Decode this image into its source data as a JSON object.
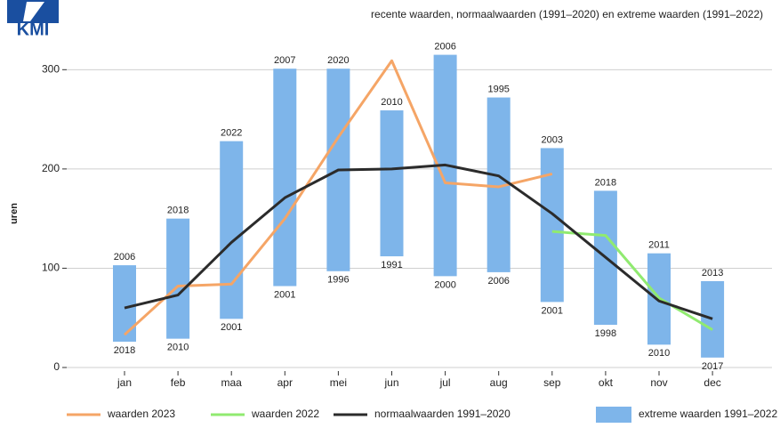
{
  "logo_text": "KMI",
  "chart_data": {
    "type": "line",
    "subtitle": "recente waarden, normaalwaarden (1991–2020) en extreme waarden (1991–2022)",
    "y_label": "uren",
    "categories": [
      "jan",
      "feb",
      "maa",
      "apr",
      "mei",
      "jun",
      "jul",
      "aug",
      "sep",
      "okt",
      "nov",
      "dec"
    ],
    "ylim": [
      0,
      320
    ],
    "yticks": [
      0,
      100,
      200,
      300
    ],
    "grid": true,
    "range": {
      "name": "extreme waarden 1991–2022",
      "color": "#7eb5ea",
      "low": [
        26,
        29,
        49,
        82,
        97,
        112,
        92,
        96,
        66,
        43,
        23,
        10
      ],
      "high": [
        103,
        150,
        228,
        301,
        301,
        259,
        315,
        272,
        221,
        178,
        115,
        87
      ],
      "low_labels": [
        "2018",
        "2010",
        "2001",
        "2001",
        "1996",
        "1991",
        "2000",
        "2006",
        "2001",
        "1998",
        "2010",
        "2017"
      ],
      "high_labels": [
        "2006",
        "2018",
        "2022",
        "2007",
        "2020",
        "2010",
        "2006",
        "1995",
        "2003",
        "2018",
        "2011",
        "2013"
      ]
    },
    "series": [
      {
        "name": "waarden 2023",
        "color": "#f5a566",
        "values": [
          33,
          82,
          84,
          150,
          232,
          309,
          186,
          182,
          195,
          null,
          null,
          null
        ]
      },
      {
        "name": "waarden 2022",
        "color": "#90ea70",
        "values": [
          null,
          null,
          null,
          null,
          null,
          null,
          null,
          null,
          137,
          133,
          70,
          38
        ]
      },
      {
        "name": "normaalwaarden 1991–2020",
        "color": "#2b2b2b",
        "values": [
          60,
          73,
          126,
          171,
          199,
          200,
          204,
          193,
          155,
          111,
          67,
          49
        ]
      }
    ]
  }
}
